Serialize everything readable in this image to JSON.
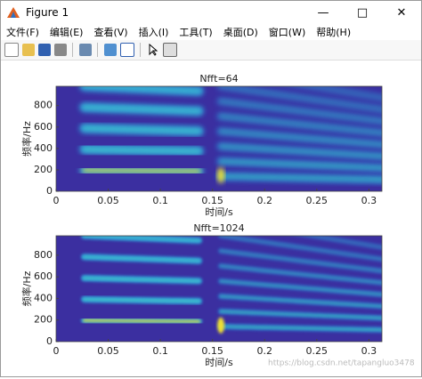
{
  "window": {
    "title": "Figure 1"
  },
  "menu": [
    "文件(F)",
    "编辑(E)",
    "查看(V)",
    "插入(I)",
    "工具(T)",
    "桌面(D)",
    "窗口(W)",
    "帮助(H)"
  ],
  "chart_data": [
    {
      "type": "spectrogram",
      "title": "Nfft=64",
      "x_label": "时间/s",
      "y_label": "频率/Hz",
      "xlim": [
        0,
        0.3125
      ],
      "xticks": [
        0,
        0.05,
        0.1,
        0.15,
        0.2,
        0.25,
        0.3
      ],
      "ylim": [
        0,
        980
      ],
      "yticks": [
        0,
        200,
        400,
        600,
        800
      ]
    },
    {
      "type": "spectrogram",
      "title": "Nfft=1024",
      "x_label": "时间/s",
      "y_label": "频率/Hz",
      "xlim": [
        0,
        0.3125
      ],
      "xticks": [
        0,
        0.05,
        0.1,
        0.15,
        0.2,
        0.25,
        0.3
      ],
      "ylim": [
        0,
        980
      ],
      "yticks": [
        0,
        200,
        400,
        600,
        800
      ]
    }
  ],
  "watermark": "https://blog.csdn.net/tapangluo3478"
}
